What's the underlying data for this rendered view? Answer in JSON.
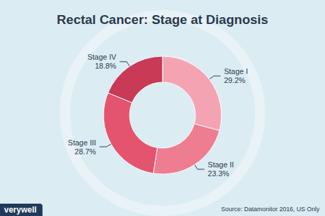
{
  "chart_data": {
    "type": "pie",
    "title": "Rectal Cancer: Stage at Diagnosis",
    "categories": [
      "Stage I",
      "Stage II",
      "Stage III",
      "Stage IV"
    ],
    "values": [
      29.2,
      23.3,
      28.7,
      18.8
    ],
    "value_labels": [
      "29.2%",
      "23.3%",
      "28.7%",
      "18.8%"
    ],
    "colors": [
      "#f4a3b3",
      "#ee7d92",
      "#e5546f",
      "#c83a55"
    ],
    "data_labels": true,
    "annotations": [
      "Source: Datamonitor 2016, US Only",
      "verywell"
    ]
  }
}
